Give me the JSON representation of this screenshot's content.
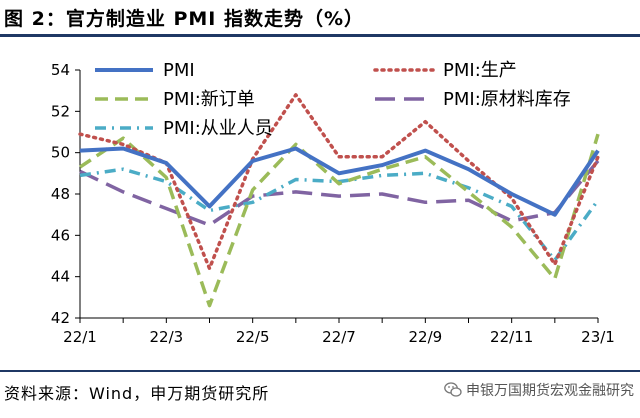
{
  "title": "图 2：官方制造业 PMI 指数走势（%）",
  "source": "资料来源：Wind，申万期货研究所",
  "watermark": "申银万国期货宏观金融研究",
  "chart_data": {
    "type": "line",
    "title": "",
    "xlabel": "",
    "ylabel": "",
    "x": [
      "22/1",
      "22/2",
      "22/3",
      "22/4",
      "22/5",
      "22/6",
      "22/7",
      "22/8",
      "22/9",
      "22/10",
      "22/11",
      "22/12",
      "23/1"
    ],
    "x_tick_labels": [
      "22/1",
      "22/3",
      "22/5",
      "22/7",
      "22/9",
      "22/11",
      "23/1"
    ],
    "ylim": [
      42,
      54
    ],
    "y_ticks": [
      42,
      44,
      46,
      48,
      50,
      52,
      54
    ],
    "grid": false,
    "legend": "top, two columns",
    "series": [
      {
        "name": "PMI",
        "color": "#4472c4",
        "dash": "solid",
        "values": [
          50.1,
          50.2,
          49.5,
          47.4,
          49.6,
          50.2,
          49.0,
          49.4,
          50.1,
          49.2,
          48.0,
          47.0,
          50.1
        ]
      },
      {
        "name": "PMI:生产",
        "color": "#c0504d",
        "dash": "dotted",
        "values": [
          50.9,
          50.4,
          49.5,
          44.4,
          49.7,
          52.8,
          49.8,
          49.8,
          51.5,
          49.6,
          47.8,
          44.6,
          49.8
        ]
      },
      {
        "name": "PMI:新订单",
        "color": "#9bbb59",
        "dash": "dashed",
        "values": [
          49.3,
          50.7,
          48.8,
          42.6,
          48.2,
          50.4,
          48.5,
          49.2,
          49.8,
          48.1,
          46.4,
          43.9,
          50.9
        ]
      },
      {
        "name": "PMI:原材料库存",
        "color": "#8064a2",
        "dash": "longdash",
        "values": [
          49.1,
          48.1,
          47.3,
          46.5,
          47.9,
          48.1,
          47.9,
          48.0,
          47.6,
          47.7,
          46.7,
          47.1,
          49.6
        ]
      },
      {
        "name": "PMI:从业人员",
        "color": "#4bacc6",
        "dash": "dashdot",
        "values": [
          48.9,
          49.2,
          48.6,
          47.2,
          47.6,
          48.7,
          48.6,
          48.9,
          49.0,
          48.3,
          47.4,
          44.8,
          47.7
        ]
      }
    ]
  }
}
